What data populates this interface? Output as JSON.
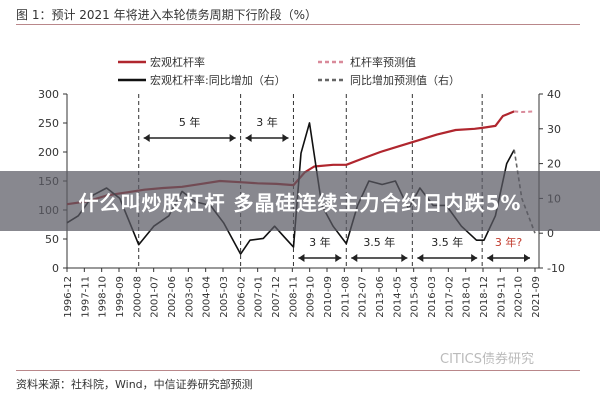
{
  "title": "图 1：预计 2021 年将进入本轮债务周期下行阶段（%）",
  "banner": "什么叫炒股杠杆 多晶硅连续主力合约日内跌5%",
  "source": "资料来源：社科院，Wind，中信证券研究部预测",
  "watermark": "CITICS债券研究",
  "colors": {
    "leverage": "#b0262e",
    "forecast_leverage": "#d98a9a",
    "yoy": "#111111",
    "forecast_yoy": "#666666",
    "annotation_red": "#c0392b"
  },
  "chart_data": {
    "type": "line",
    "left_axis": {
      "ylim": [
        0,
        300
      ],
      "ticks": [
        "0",
        "50",
        "100",
        "150",
        "200",
        "250",
        "300"
      ]
    },
    "right_axis": {
      "ylim": [
        -10,
        40
      ],
      "ticks": [
        "-10",
        "0",
        "10",
        "20",
        "30",
        "40"
      ]
    },
    "x_ticks": [
      "1996-12",
      "1997-11",
      "1998-10",
      "1999-09",
      "2000-08",
      "2001-07",
      "2002-06",
      "2003-05",
      "2004-04",
      "2005-03",
      "2006-02",
      "2007-01",
      "2007-12",
      "2008-11",
      "2009-10",
      "2010-09",
      "2011-08",
      "2012-07",
      "2013-06",
      "2014-05",
      "2015-04",
      "2016-03",
      "2017-02",
      "2018-01",
      "2018-12",
      "2019-11",
      "2020-10",
      "2021-09"
    ],
    "legend": [
      "宏观杠杆率",
      "杠杆率预测值",
      "宏观杠杆率:同比增加（右）",
      "同比增加预测值（右）"
    ],
    "series": [
      {
        "name": "宏观杠杆率",
        "axis": "left",
        "x": [
          1996.9,
          1998,
          1999,
          2000,
          2001,
          2002,
          2003,
          2004,
          2005,
          2006.1,
          2007,
          2008,
          2008.9,
          2009.5,
          2010,
          2011,
          2011.7,
          2012.5,
          2013.5,
          2014.5,
          2015.5,
          2016.5,
          2017.5,
          2018.5,
          2019,
          2019.6,
          2020,
          2020.6
        ],
        "values": [
          110,
          115,
          125,
          130,
          135,
          138,
          140,
          145,
          150,
          148,
          146,
          145,
          143,
          165,
          175,
          178,
          178,
          188,
          200,
          210,
          220,
          230,
          238,
          240,
          242,
          245,
          262,
          270
        ]
      },
      {
        "name": "杠杆率预测值",
        "axis": "left",
        "x": [
          2020.6,
          2021,
          2021.7
        ],
        "values": [
          270,
          269,
          270
        ]
      },
      {
        "name": "宏观杠杆率:同比增加（右）",
        "axis": "right",
        "x": [
          1996.9,
          1997.5,
          1998.3,
          1999,
          1999.7,
          2000.7,
          2001.5,
          2002.3,
          2003,
          2003.7,
          2004.5,
          2005.2,
          2006.1,
          2006.6,
          2007.3,
          2007.9,
          2008.4,
          2008.9,
          2009.3,
          2009.75,
          2010.4,
          2011,
          2011.7,
          2012.3,
          2012.9,
          2013.6,
          2014.3,
          2015,
          2015.6,
          2016.3,
          2017,
          2017.8,
          2018.6,
          2019,
          2019.6,
          2020.2,
          2020.6
        ],
        "values": [
          3,
          5,
          11,
          13,
          10,
          -3.3,
          2,
          5,
          12,
          9,
          8,
          3,
          -6,
          -2,
          -1.5,
          2,
          -1,
          -4,
          23,
          31.7,
          8,
          2,
          -3,
          8,
          15,
          14,
          15,
          7,
          13,
          8,
          8,
          2,
          -2,
          -2,
          5,
          20,
          24
        ]
      },
      {
        "name": "同比增加预测值（右）",
        "axis": "right",
        "x": [
          2020.6,
          2021,
          2021.7
        ],
        "values": [
          24,
          10,
          0
        ]
      }
    ],
    "phase_dividers": [
      2000.7,
      2006.1,
      2008.9,
      2011.7,
      2015.2,
      2018.9
    ],
    "annotations": [
      {
        "text": "5 年",
        "from": 2000.7,
        "to": 2006.1,
        "row": "top"
      },
      {
        "text": "3 年",
        "from": 2006.1,
        "to": 2008.9,
        "row": "top"
      },
      {
        "text": "3 年",
        "from": 2008.9,
        "to": 2011.7,
        "row": "bottom"
      },
      {
        "text": "3.5 年",
        "from": 2011.7,
        "to": 2015.2,
        "row": "bottom"
      },
      {
        "text": "3.5 年",
        "from": 2015.2,
        "to": 2018.9,
        "row": "bottom"
      },
      {
        "text": "3 年?",
        "from": 2018.9,
        "to": 2021.7,
        "row": "bottom",
        "red": true
      }
    ]
  }
}
